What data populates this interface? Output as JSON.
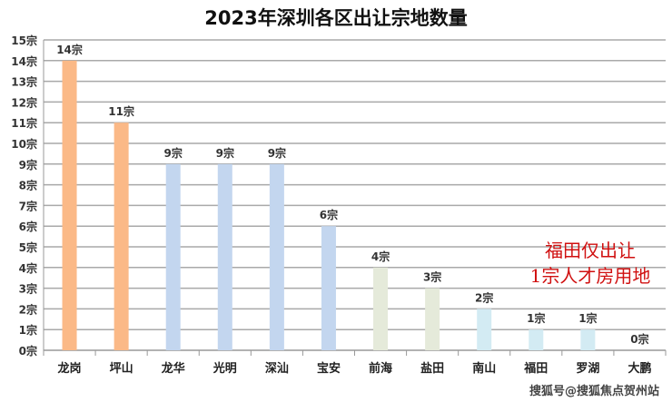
{
  "chart_data": {
    "type": "bar",
    "title": "2023年深圳各区出让宗地数量",
    "categories": [
      "龙岗",
      "坪山",
      "龙华",
      "光明",
      "深汕",
      "宝安",
      "前海",
      "盐田",
      "南山",
      "福田",
      "罗湖",
      "大鹏"
    ],
    "values": [
      14,
      11,
      9,
      9,
      9,
      6,
      4,
      3,
      2,
      1,
      1,
      0
    ],
    "data_labels": [
      "14宗",
      "11宗",
      "9宗",
      "9宗",
      "9宗",
      "6宗",
      "4宗",
      "3宗",
      "2宗",
      "1宗",
      "1宗",
      "0宗"
    ],
    "colors": [
      "#fbb987",
      "#fbb987",
      "#c3d6ef",
      "#c3d6ef",
      "#c3d6ef",
      "#c3d6ef",
      "#e5eada",
      "#e5eada",
      "#d3ebf3",
      "#d3ebf3",
      "#d3ebf3",
      "#d3ebf3"
    ],
    "ylim": [
      0,
      15
    ],
    "yticks": [
      "0宗",
      "1宗",
      "2宗",
      "3宗",
      "4宗",
      "5宗",
      "6宗",
      "7宗",
      "8宗",
      "9宗",
      "10宗",
      "11宗",
      "12宗",
      "13宗",
      "14宗",
      "15宗"
    ],
    "grid": true,
    "xlabel": "",
    "ylabel": ""
  },
  "annotation": {
    "line1": "福田仅出让",
    "line2": "1宗人才房用地",
    "color": "#d01010"
  },
  "watermark": "搜狐号@搜狐焦点贺州站"
}
